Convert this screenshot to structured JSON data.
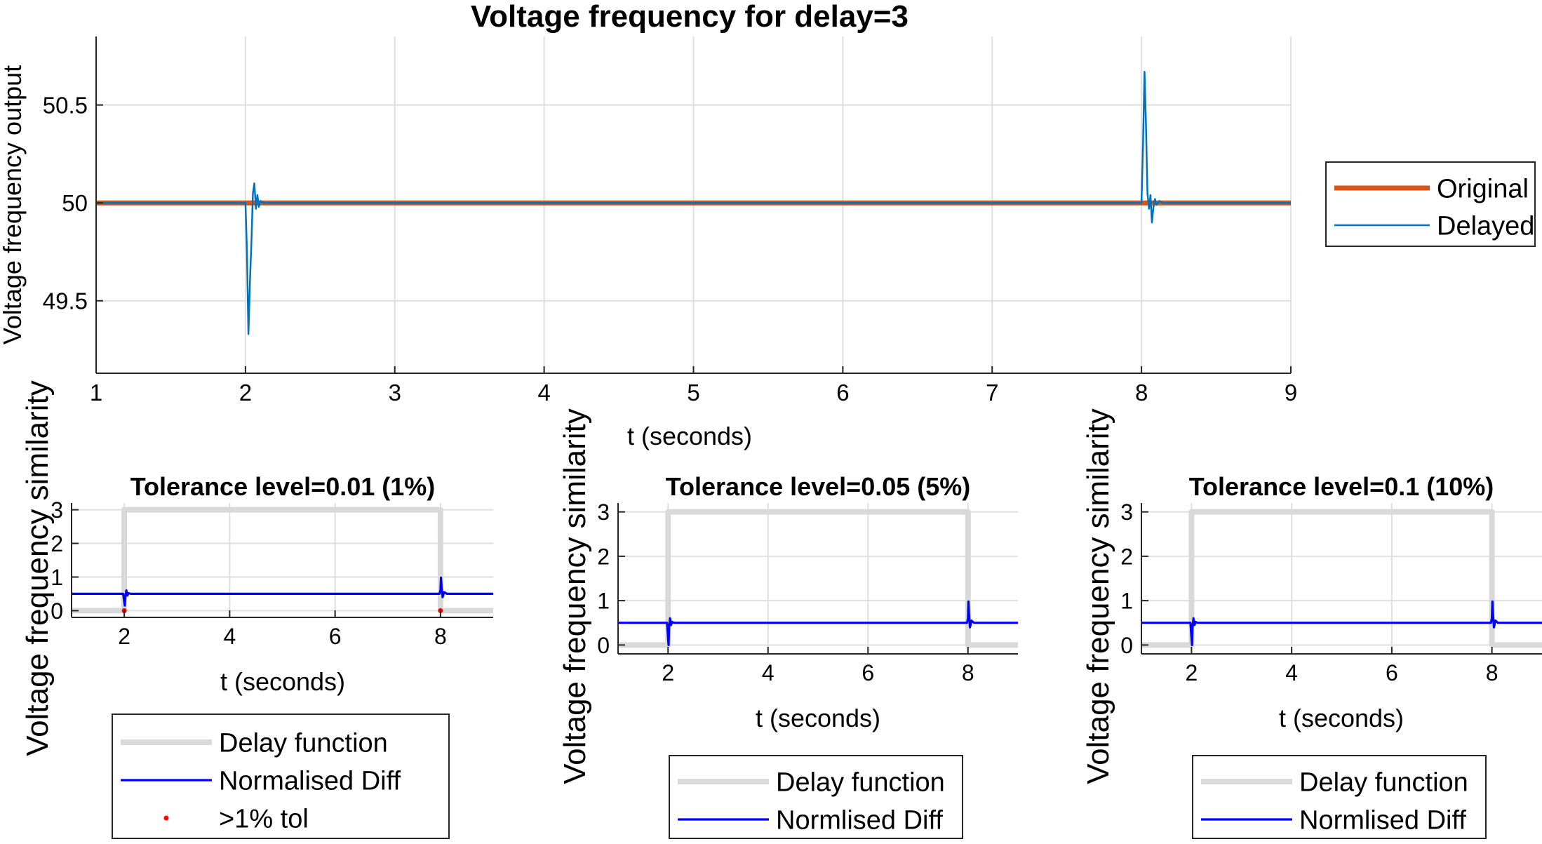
{
  "chart_data": [
    {
      "type": "line",
      "title": "Voltage frequency for delay=3",
      "xlabel": "t (seconds)",
      "ylabel": "Voltage frequency output",
      "xlim": [
        1,
        9
      ],
      "ylim": [
        49.13,
        50.85
      ],
      "xticks": [
        1,
        2,
        3,
        4,
        5,
        6,
        7,
        8,
        9
      ],
      "yticks": [
        49.5,
        50,
        50.5
      ],
      "ytick_labels": [
        "49.5",
        "50",
        "50.5"
      ],
      "grid": true,
      "legend_position": "right",
      "series": [
        {
          "name": "Original",
          "color": "#d95319",
          "x": [
            1,
            9
          ],
          "y": [
            50,
            50
          ]
        },
        {
          "name": "Delayed",
          "color": "#0072bd",
          "x": [
            1,
            2,
            2.01,
            2.02,
            2.03,
            2.04,
            2.05,
            2.06,
            2.07,
            2.08,
            2.09,
            2.1,
            2.12,
            2.14,
            8,
            8.01,
            8.02,
            8.03,
            8.04,
            8.05,
            8.06,
            8.07,
            8.08,
            8.09,
            8.1,
            8.12,
            8.14,
            9
          ],
          "y": [
            50,
            50,
            49.75,
            49.33,
            49.6,
            49.8,
            50.05,
            50.1,
            49.97,
            50.04,
            49.98,
            50.01,
            50,
            50,
            50,
            50.3,
            50.67,
            50.4,
            50.05,
            49.97,
            50.04,
            49.9,
            49.98,
            50.02,
            49.99,
            50.01,
            50,
            50
          ]
        }
      ]
    },
    {
      "type": "line",
      "title": "Tolerance level=0.01 (1%)",
      "xlabel": "t (seconds)",
      "ylabel": "Voltage frequency similarity",
      "xlim": [
        1,
        9
      ],
      "ylim": [
        -0.2,
        3.2
      ],
      "xticks": [
        2,
        4,
        6,
        8
      ],
      "yticks": [
        0,
        1,
        2,
        3
      ],
      "grid": true,
      "legend_position": "bottom",
      "series": [
        {
          "name": "Delay function",
          "color": "#d9d9d9",
          "x": [
            1,
            2,
            2,
            8,
            8,
            9
          ],
          "y": [
            0,
            0,
            3,
            3,
            0,
            0
          ]
        },
        {
          "name": "Normalised Diff",
          "color": "#0000ff",
          "x": [
            1,
            1.98,
            2.01,
            2.02,
            2.04,
            2.06,
            2.08,
            2.12,
            7.98,
            8.0,
            8.01,
            8.02,
            8.04,
            8.07,
            8.12,
            9
          ],
          "y": [
            0.5,
            0.5,
            0.15,
            0.4,
            0.6,
            0.45,
            0.52,
            0.5,
            0.5,
            0.6,
            0.98,
            0.7,
            0.4,
            0.55,
            0.5,
            0.5
          ]
        },
        {
          "name": ">1% tol",
          "color": "#ff0000",
          "marker": "dot",
          "x": [
            2,
            8
          ],
          "y": [
            0,
            0
          ]
        }
      ]
    },
    {
      "type": "line",
      "title": "Tolerance level=0.05 (5%)",
      "xlabel": "t (seconds)",
      "ylabel": "Voltage frequency similarity",
      "xlim": [
        1,
        9
      ],
      "ylim": [
        -0.2,
        3.2
      ],
      "xticks": [
        2,
        4,
        6,
        8
      ],
      "yticks": [
        0,
        1,
        2,
        3
      ],
      "grid": true,
      "legend_position": "bottom",
      "series": [
        {
          "name": "Delay function",
          "color": "#d9d9d9",
          "x": [
            1,
            2,
            2,
            8,
            8,
            9
          ],
          "y": [
            0,
            0,
            3,
            3,
            0,
            0
          ]
        },
        {
          "name": "Normlised Diff",
          "color": "#0000ff",
          "x": [
            1,
            1.98,
            2.01,
            2.02,
            2.04,
            2.06,
            2.08,
            2.12,
            7.98,
            8.0,
            8.01,
            8.02,
            8.04,
            8.07,
            8.12,
            9
          ],
          "y": [
            0.5,
            0.5,
            0.0,
            0.4,
            0.6,
            0.45,
            0.52,
            0.5,
            0.5,
            0.6,
            0.98,
            0.7,
            0.4,
            0.55,
            0.5,
            0.5
          ]
        }
      ]
    },
    {
      "type": "line",
      "title": "Tolerance level=0.1 (10%)",
      "xlabel": "t (seconds)",
      "ylabel": "Voltage frequency similarity",
      "xlim": [
        1,
        9
      ],
      "ylim": [
        -0.2,
        3.2
      ],
      "xticks": [
        2,
        4,
        6,
        8
      ],
      "yticks": [
        0,
        1,
        2,
        3
      ],
      "grid": true,
      "legend_position": "bottom",
      "series": [
        {
          "name": "Delay function",
          "color": "#d9d9d9",
          "x": [
            1,
            2,
            2,
            8,
            8,
            9
          ],
          "y": [
            0,
            0,
            3,
            3,
            0,
            0
          ]
        },
        {
          "name": "Normlised Diff",
          "color": "#0000ff",
          "x": [
            1,
            1.98,
            2.01,
            2.02,
            2.04,
            2.06,
            2.08,
            2.12,
            7.98,
            8.0,
            8.01,
            8.02,
            8.04,
            8.07,
            8.12,
            9
          ],
          "y": [
            0.5,
            0.5,
            0.0,
            0.4,
            0.6,
            0.45,
            0.52,
            0.5,
            0.5,
            0.6,
            0.98,
            0.7,
            0.4,
            0.55,
            0.5,
            0.5
          ]
        }
      ]
    }
  ]
}
